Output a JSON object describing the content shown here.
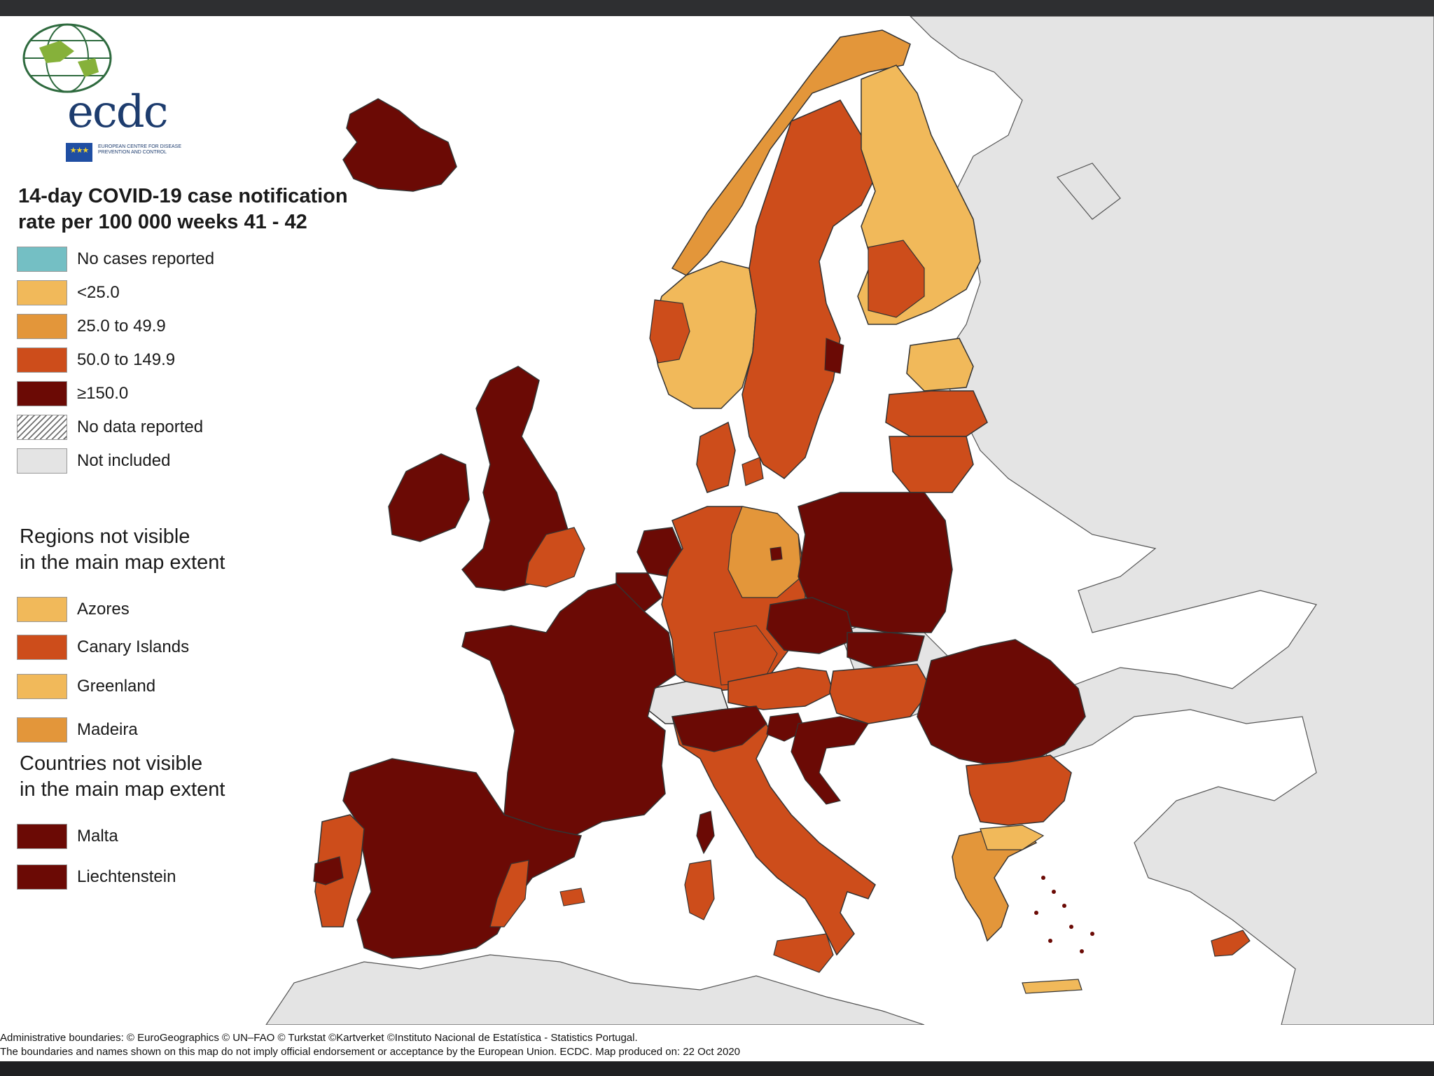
{
  "legend": {
    "title_line1": "14-day COVID-19 case notification",
    "title_line2": "rate per 100 000 weeks 41 - 42",
    "items": [
      {
        "label": "No cases reported",
        "color": "#74bfc4"
      },
      {
        "label": "<25.0",
        "color": "#f1b95a"
      },
      {
        "label": "25.0 to 49.9",
        "color": "#e3963a"
      },
      {
        "label": "50.0 to 149.9",
        "color": "#cd4d1b"
      },
      {
        "label": "≥150.0",
        "color": "#6b0a05"
      },
      {
        "label": "No data reported",
        "color": "hatched"
      },
      {
        "label": "Not included",
        "color": "#e4e4e4"
      }
    ]
  },
  "regions_section": {
    "title_line1": "Regions not visible",
    "title_line2": "in the main map extent",
    "items": [
      {
        "label": "Azores",
        "color": "#f1b95a"
      },
      {
        "label": "Canary Islands",
        "color": "#cd4d1b"
      },
      {
        "label": "Greenland",
        "color": "#f1b95a"
      },
      {
        "label": "Madeira",
        "color": "#e3963a"
      }
    ]
  },
  "countries_section": {
    "title_line1": "Countries not visible",
    "title_line2": "in the main map extent",
    "items": [
      {
        "label": "Malta",
        "color": "#6b0a05"
      },
      {
        "label": "Liechtenstein",
        "color": "#6b0a05"
      }
    ]
  },
  "logo": {
    "wordmark": "ecdc",
    "subtitle": "European Centre for Disease Prevention and Control"
  },
  "attribution": {
    "line1": "Administrative boundaries: © EuroGeographics © UN–FAO © Turkstat ©Kartverket ©Instituto Nacional de Estatística - Statistics Portugal.",
    "line2": "The boundaries and names shown on this map do not imply official endorsement or acceptance by the European Union. ECDC. Map produced on: 22 Oct 2020"
  },
  "colors": {
    "sea": "#ffffff",
    "not_included": "#e4e4e4",
    "border": "#4a4a4a"
  },
  "map_regions": [
    {
      "name": "Iceland",
      "category": "≥150.0"
    },
    {
      "name": "Norway north",
      "category": "25.0 to 49.9"
    },
    {
      "name": "Norway south",
      "category": "<25.0"
    },
    {
      "name": "Sweden",
      "category": "50.0 to 149.9"
    },
    {
      "name": "Finland",
      "category": "<25.0"
    },
    {
      "name": "Estonia",
      "category": "<25.0"
    },
    {
      "name": "Latvia",
      "category": "50.0 to 149.9"
    },
    {
      "name": "Lithuania",
      "category": "50.0 to 149.9"
    },
    {
      "name": "Denmark",
      "category": "50.0 to 149.9"
    },
    {
      "name": "Ireland",
      "category": "≥150.0"
    },
    {
      "name": "United Kingdom",
      "category": "≥150.0"
    },
    {
      "name": "Netherlands",
      "category": "≥150.0"
    },
    {
      "name": "Belgium",
      "category": "≥150.0"
    },
    {
      "name": "Germany",
      "category": "50.0 to 149.9"
    },
    {
      "name": "Poland",
      "category": "≥150.0"
    },
    {
      "name": "Czechia",
      "category": "≥150.0"
    },
    {
      "name": "Slovakia",
      "category": "≥150.0"
    },
    {
      "name": "Austria",
      "category": "50.0 to 149.9"
    },
    {
      "name": "Hungary",
      "category": "50.0 to 149.9"
    },
    {
      "name": "Switzerland",
      "category": "Not included"
    },
    {
      "name": "France",
      "category": "≥150.0"
    },
    {
      "name": "Spain",
      "category": "≥150.0"
    },
    {
      "name": "Portugal",
      "category": "50.0 to 149.9"
    },
    {
      "name": "Italy",
      "category": "50.0 to 149.9"
    },
    {
      "name": "Slovenia",
      "category": "≥150.0"
    },
    {
      "name": "Croatia",
      "category": "≥150.0"
    },
    {
      "name": "Romania",
      "category": "≥150.0"
    },
    {
      "name": "Bulgaria",
      "category": "50.0 to 149.9"
    },
    {
      "name": "Greece",
      "category": "25.0 to 49.9"
    },
    {
      "name": "Cyprus",
      "category": "50.0 to 149.9"
    },
    {
      "name": "Sardinia",
      "category": "50.0 to 149.9"
    },
    {
      "name": "Corsica",
      "category": "≥150.0"
    },
    {
      "name": "Sicily",
      "category": "50.0 to 149.9"
    },
    {
      "name": "Crete",
      "category": "<25.0"
    },
    {
      "name": "Balearic Islands",
      "category": "50.0 to 149.9"
    }
  ]
}
